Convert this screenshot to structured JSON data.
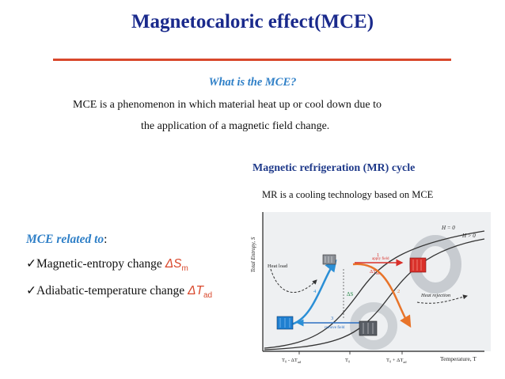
{
  "title": "Magnetocaloric effect(MCE)",
  "what_heading": "What is the MCE?",
  "definition_line1": "MCE is a  phenomenon in which material heat up or cool down due to",
  "definition_line2": "the application of a magnetic field change.",
  "mr_heading": "Magnetic refrigeration (MR) cycle",
  "mr_description": "MR is a cooling technology  based on MCE",
  "related_label": "MCE related to",
  "related_colon": ":",
  "bullets": [
    {
      "check": "✓",
      "text": "Magnetic-entropy change ",
      "symbol": "ΔS",
      "sub": "m"
    },
    {
      "check": "✓",
      "text": "Adiabatic-temperature change ",
      "symbol": "ΔT",
      "sub": "ad"
    }
  ],
  "figure": {
    "y_label": "Total Entropy, S",
    "x_label": "Temperature, T",
    "curve_h0": "H = 0",
    "curve_h1": "H > 0",
    "heat_load": "Heat load",
    "heat_rejection": "Heat rejection",
    "apply_field": "apply field",
    "remove_field": "remove field",
    "dtad_upper": "ΔT",
    "dtad_upper_sub": "ad",
    "ds": "ΔS",
    "step1": "1",
    "step2": "2",
    "step3": "3",
    "step4": "4",
    "tick_left": "T₀ - ΔT",
    "tick_left_sub": "ad",
    "tick_mid": "T₀",
    "tick_right": "T₀ + ΔT",
    "tick_right_sub": "ad",
    "colors": {
      "blue_branch": "#2b8fd6",
      "orange_branch": "#e8742a",
      "red_arrow": "#d9302a"
    }
  }
}
